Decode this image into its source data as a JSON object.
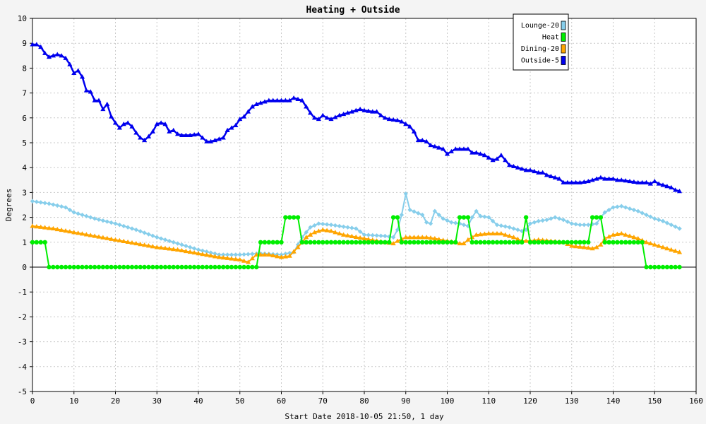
{
  "chart_data": {
    "type": "line",
    "title": "Heating + Outside",
    "xlabel": "Start Date 2018-10-05 21:50, 1 day",
    "ylabel": "Degrees",
    "xlim": [
      0,
      160
    ],
    "ylim": [
      -5,
      10
    ],
    "xticks": [
      0,
      10,
      20,
      30,
      40,
      50,
      60,
      70,
      80,
      90,
      100,
      110,
      120,
      130,
      140,
      150,
      160
    ],
    "yticks": [
      -5,
      -4,
      -3,
      -2,
      -1,
      0,
      1,
      2,
      3,
      4,
      5,
      6,
      7,
      8,
      9,
      10
    ],
    "grid": true,
    "legend_position": "top-right",
    "series": [
      {
        "name": "Lounge-20",
        "color": "#87ceeb",
        "marker": "diamond",
        "points": [
          [
            0,
            2.65
          ],
          [
            4,
            2.55
          ],
          [
            8,
            2.4
          ],
          [
            10,
            2.2
          ],
          [
            15,
            1.95
          ],
          [
            20,
            1.75
          ],
          [
            25,
            1.5
          ],
          [
            30,
            1.2
          ],
          [
            35,
            0.95
          ],
          [
            40,
            0.7
          ],
          [
            45,
            0.5
          ],
          [
            50,
            0.5
          ],
          [
            55,
            0.55
          ],
          [
            60,
            0.5
          ],
          [
            63,
            0.6
          ],
          [
            65,
            1.2
          ],
          [
            67,
            1.6
          ],
          [
            69,
            1.75
          ],
          [
            72,
            1.7
          ],
          [
            76,
            1.6
          ],
          [
            78,
            1.55
          ],
          [
            80,
            1.3
          ],
          [
            85,
            1.25
          ],
          [
            87,
            1.2
          ],
          [
            88,
            1.5
          ],
          [
            89,
            2.1
          ],
          [
            90,
            2.95
          ],
          [
            91,
            2.3
          ],
          [
            94,
            2.1
          ],
          [
            95,
            1.8
          ],
          [
            96,
            1.75
          ],
          [
            97,
            2.25
          ],
          [
            99,
            1.95
          ],
          [
            101,
            1.8
          ],
          [
            103,
            1.75
          ],
          [
            105,
            1.65
          ],
          [
            106,
            2.0
          ],
          [
            107,
            2.25
          ],
          [
            108,
            2.05
          ],
          [
            110,
            2.0
          ],
          [
            112,
            1.7
          ],
          [
            115,
            1.6
          ],
          [
            118,
            1.45
          ],
          [
            119,
            1.5
          ],
          [
            120,
            1.75
          ],
          [
            122,
            1.85
          ],
          [
            124,
            1.9
          ],
          [
            126,
            2.0
          ],
          [
            128,
            1.9
          ],
          [
            130,
            1.75
          ],
          [
            132,
            1.7
          ],
          [
            134,
            1.7
          ],
          [
            136,
            1.75
          ],
          [
            137,
            2.0
          ],
          [
            138,
            2.2
          ],
          [
            140,
            2.4
          ],
          [
            142,
            2.45
          ],
          [
            144,
            2.35
          ],
          [
            146,
            2.25
          ],
          [
            148,
            2.1
          ],
          [
            150,
            1.95
          ],
          [
            152,
            1.85
          ],
          [
            154,
            1.7
          ],
          [
            156,
            1.55
          ]
        ]
      },
      {
        "name": "Heat",
        "color": "#00ee00",
        "marker": "circle",
        "points": [
          [
            0,
            1
          ],
          [
            3,
            1
          ],
          [
            4,
            0
          ],
          [
            54,
            0
          ],
          [
            55,
            1
          ],
          [
            60,
            1
          ],
          [
            61,
            2
          ],
          [
            64,
            2
          ],
          [
            65,
            1
          ],
          [
            86,
            1
          ],
          [
            87,
            2
          ],
          [
            88,
            2
          ],
          [
            89,
            1
          ],
          [
            102,
            1
          ],
          [
            103,
            2
          ],
          [
            105,
            2
          ],
          [
            106,
            1
          ],
          [
            118,
            1
          ],
          [
            119,
            2
          ],
          [
            120,
            1
          ],
          [
            134,
            1
          ],
          [
            135,
            2
          ],
          [
            137,
            2
          ],
          [
            138,
            1
          ],
          [
            147,
            1
          ],
          [
            148,
            0
          ],
          [
            156,
            0
          ]
        ]
      },
      {
        "name": "Dining-20",
        "color": "#ffa500",
        "marker": "triangle",
        "points": [
          [
            0,
            1.65
          ],
          [
            5,
            1.55
          ],
          [
            10,
            1.4
          ],
          [
            15,
            1.25
          ],
          [
            20,
            1.1
          ],
          [
            25,
            0.95
          ],
          [
            30,
            0.8
          ],
          [
            35,
            0.7
          ],
          [
            40,
            0.55
          ],
          [
            45,
            0.4
          ],
          [
            50,
            0.3
          ],
          [
            52,
            0.2
          ],
          [
            54,
            0.5
          ],
          [
            57,
            0.5
          ],
          [
            60,
            0.4
          ],
          [
            62,
            0.45
          ],
          [
            64,
            0.8
          ],
          [
            66,
            1.2
          ],
          [
            68,
            1.4
          ],
          [
            70,
            1.5
          ],
          [
            72,
            1.45
          ],
          [
            75,
            1.3
          ],
          [
            80,
            1.15
          ],
          [
            85,
            1.0
          ],
          [
            87,
            0.95
          ],
          [
            88,
            1.05
          ],
          [
            90,
            1.2
          ],
          [
            93,
            1.2
          ],
          [
            95,
            1.2
          ],
          [
            97,
            1.15
          ],
          [
            100,
            1.05
          ],
          [
            102,
            1.0
          ],
          [
            103,
            0.95
          ],
          [
            104,
            0.95
          ],
          [
            105,
            1.1
          ],
          [
            107,
            1.3
          ],
          [
            110,
            1.35
          ],
          [
            113,
            1.35
          ],
          [
            116,
            1.2
          ],
          [
            118,
            1.05
          ],
          [
            120,
            1.05
          ],
          [
            122,
            1.1
          ],
          [
            125,
            1.05
          ],
          [
            128,
            1.0
          ],
          [
            130,
            0.85
          ],
          [
            133,
            0.8
          ],
          [
            135,
            0.75
          ],
          [
            136,
            0.8
          ],
          [
            137,
            0.9
          ],
          [
            138,
            1.15
          ],
          [
            140,
            1.3
          ],
          [
            142,
            1.35
          ],
          [
            144,
            1.25
          ],
          [
            146,
            1.15
          ],
          [
            148,
            1.0
          ],
          [
            150,
            0.9
          ],
          [
            152,
            0.8
          ],
          [
            154,
            0.7
          ],
          [
            156,
            0.6
          ]
        ]
      },
      {
        "name": "Outside-5",
        "color": "#0000ee",
        "marker": "triangle",
        "points": [
          [
            0,
            8.95
          ],
          [
            1,
            8.95
          ],
          [
            2,
            8.85
          ],
          [
            3,
            8.6
          ],
          [
            4,
            8.45
          ],
          [
            5,
            8.5
          ],
          [
            6,
            8.55
          ],
          [
            7,
            8.5
          ],
          [
            8,
            8.4
          ],
          [
            9,
            8.15
          ],
          [
            10,
            7.8
          ],
          [
            11,
            7.9
          ],
          [
            12,
            7.65
          ],
          [
            13,
            7.1
          ],
          [
            14,
            7.05
          ],
          [
            15,
            6.7
          ],
          [
            16,
            6.7
          ],
          [
            17,
            6.35
          ],
          [
            18,
            6.55
          ],
          [
            19,
            6.05
          ],
          [
            20,
            5.8
          ],
          [
            21,
            5.6
          ],
          [
            22,
            5.75
          ],
          [
            23,
            5.8
          ],
          [
            24,
            5.65
          ],
          [
            25,
            5.4
          ],
          [
            26,
            5.2
          ],
          [
            27,
            5.1
          ],
          [
            28,
            5.25
          ],
          [
            29,
            5.45
          ],
          [
            30,
            5.75
          ],
          [
            31,
            5.8
          ],
          [
            32,
            5.75
          ],
          [
            33,
            5.45
          ],
          [
            34,
            5.5
          ],
          [
            35,
            5.35
          ],
          [
            36,
            5.3
          ],
          [
            38,
            5.3
          ],
          [
            40,
            5.35
          ],
          [
            41,
            5.2
          ],
          [
            42,
            5.05
          ],
          [
            43,
            5.05
          ],
          [
            44,
            5.1
          ],
          [
            45,
            5.15
          ],
          [
            46,
            5.2
          ],
          [
            47,
            5.5
          ],
          [
            48,
            5.6
          ],
          [
            49,
            5.7
          ],
          [
            50,
            5.95
          ],
          [
            51,
            6.05
          ],
          [
            52,
            6.25
          ],
          [
            53,
            6.45
          ],
          [
            54,
            6.55
          ],
          [
            55,
            6.6
          ],
          [
            56,
            6.65
          ],
          [
            57,
            6.7
          ],
          [
            58,
            6.7
          ],
          [
            60,
            6.7
          ],
          [
            62,
            6.7
          ],
          [
            63,
            6.8
          ],
          [
            65,
            6.7
          ],
          [
            66,
            6.45
          ],
          [
            67,
            6.2
          ],
          [
            68,
            6.0
          ],
          [
            69,
            5.95
          ],
          [
            70,
            6.1
          ],
          [
            71,
            6.0
          ],
          [
            72,
            5.95
          ],
          [
            74,
            6.1
          ],
          [
            76,
            6.2
          ],
          [
            78,
            6.3
          ],
          [
            79,
            6.35
          ],
          [
            80,
            6.3
          ],
          [
            82,
            6.25
          ],
          [
            83,
            6.25
          ],
          [
            84,
            6.1
          ],
          [
            85,
            6.0
          ],
          [
            86,
            5.95
          ],
          [
            88,
            5.9
          ],
          [
            89,
            5.85
          ],
          [
            90,
            5.75
          ],
          [
            91,
            5.65
          ],
          [
            92,
            5.45
          ],
          [
            93,
            5.1
          ],
          [
            94,
            5.1
          ],
          [
            95,
            5.05
          ],
          [
            96,
            4.9
          ],
          [
            97,
            4.85
          ],
          [
            98,
            4.8
          ],
          [
            99,
            4.75
          ],
          [
            100,
            4.55
          ],
          [
            101,
            4.65
          ],
          [
            102,
            4.75
          ],
          [
            104,
            4.75
          ],
          [
            105,
            4.75
          ],
          [
            106,
            4.6
          ],
          [
            107,
            4.6
          ],
          [
            108,
            4.55
          ],
          [
            109,
            4.5
          ],
          [
            110,
            4.4
          ],
          [
            111,
            4.3
          ],
          [
            112,
            4.35
          ],
          [
            113,
            4.5
          ],
          [
            114,
            4.3
          ],
          [
            115,
            4.1
          ],
          [
            116,
            4.05
          ],
          [
            117,
            4.0
          ],
          [
            118,
            3.95
          ],
          [
            119,
            3.9
          ],
          [
            120,
            3.9
          ],
          [
            121,
            3.85
          ],
          [
            122,
            3.8
          ],
          [
            123,
            3.8
          ],
          [
            124,
            3.7
          ],
          [
            125,
            3.65
          ],
          [
            126,
            3.6
          ],
          [
            127,
            3.55
          ],
          [
            128,
            3.4
          ],
          [
            130,
            3.4
          ],
          [
            132,
            3.4
          ],
          [
            134,
            3.45
          ],
          [
            135,
            3.5
          ],
          [
            136,
            3.55
          ],
          [
            137,
            3.6
          ],
          [
            138,
            3.55
          ],
          [
            140,
            3.55
          ],
          [
            141,
            3.5
          ],
          [
            142,
            3.5
          ],
          [
            144,
            3.45
          ],
          [
            146,
            3.4
          ],
          [
            148,
            3.4
          ],
          [
            149,
            3.35
          ],
          [
            150,
            3.45
          ],
          [
            151,
            3.35
          ],
          [
            152,
            3.3
          ],
          [
            153,
            3.25
          ],
          [
            154,
            3.2
          ],
          [
            155,
            3.1
          ],
          [
            156,
            3.05
          ]
        ]
      }
    ]
  }
}
